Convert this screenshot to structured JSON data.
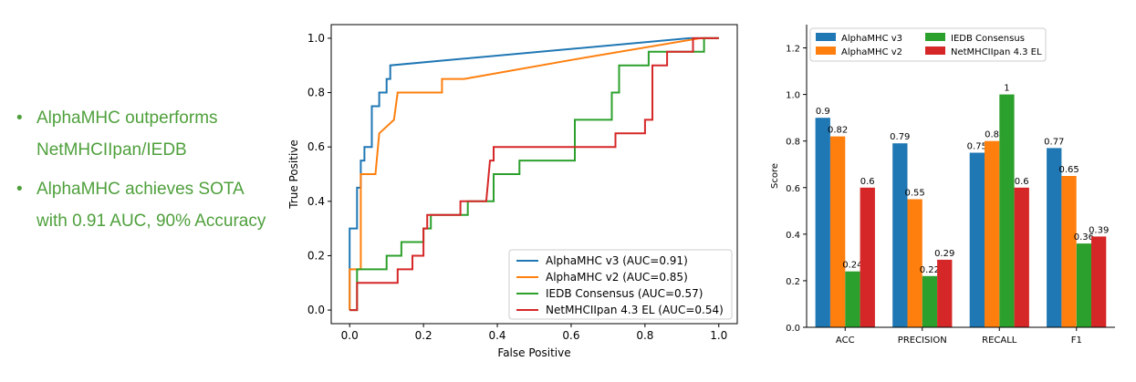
{
  "bullets": [
    {
      "lines": [
        "AlphaMHC outperforms",
        "NetMHCIIpan/IEDB"
      ]
    },
    {
      "lines": [
        "AlphaMHC achieves SOTA",
        "with 0.91 AUC, 90% Accuracy"
      ]
    }
  ],
  "chart_data": [
    {
      "type": "line",
      "xlabel": "False Positive",
      "ylabel": "True Positive",
      "xlim": [
        -0.05,
        1.05
      ],
      "ylim": [
        -0.05,
        1.05
      ],
      "xticks": [
        "0.0",
        "0.2",
        "0.4",
        "0.6",
        "0.8",
        "1.0"
      ],
      "yticks": [
        "0.0",
        "0.2",
        "0.4",
        "0.6",
        "0.8",
        "1.0"
      ],
      "legend_position": "bottom-right",
      "series": [
        {
          "name": "AlphaMHC v3 (AUC=0.91)",
          "color": "#1f77b4",
          "points": [
            [
              0,
              0
            ],
            [
              0,
              0.3
            ],
            [
              0.02,
              0.3
            ],
            [
              0.02,
              0.45
            ],
            [
              0.03,
              0.45
            ],
            [
              0.03,
              0.55
            ],
            [
              0.04,
              0.55
            ],
            [
              0.04,
              0.6
            ],
            [
              0.06,
              0.6
            ],
            [
              0.06,
              0.75
            ],
            [
              0.08,
              0.75
            ],
            [
              0.08,
              0.8
            ],
            [
              0.1,
              0.8
            ],
            [
              0.1,
              0.85
            ],
            [
              0.11,
              0.85
            ],
            [
              0.11,
              0.9
            ],
            [
              0.92,
              1.0
            ],
            [
              1,
              1
            ]
          ]
        },
        {
          "name": "AlphaMHC v2 (AUC=0.85)",
          "color": "#ff7f0e",
          "points": [
            [
              0,
              0
            ],
            [
              0,
              0.15
            ],
            [
              0.03,
              0.15
            ],
            [
              0.03,
              0.5
            ],
            [
              0.07,
              0.5
            ],
            [
              0.08,
              0.65
            ],
            [
              0.12,
              0.7
            ],
            [
              0.13,
              0.8
            ],
            [
              0.25,
              0.8
            ],
            [
              0.25,
              0.85
            ],
            [
              0.31,
              0.85
            ],
            [
              0.6,
              0.92
            ],
            [
              0.95,
              1.0
            ],
            [
              0.96,
              1.0
            ],
            [
              0.96,
              1.0
            ],
            [
              1,
              1
            ]
          ]
        },
        {
          "name": "IEDB Consensus (AUC=0.57)",
          "color": "#2ca02c",
          "points": [
            [
              0,
              0
            ],
            [
              0.02,
              0
            ],
            [
              0.02,
              0.15
            ],
            [
              0.1,
              0.15
            ],
            [
              0.1,
              0.2
            ],
            [
              0.14,
              0.2
            ],
            [
              0.14,
              0.25
            ],
            [
              0.2,
              0.25
            ],
            [
              0.2,
              0.3
            ],
            [
              0.22,
              0.3
            ],
            [
              0.22,
              0.35
            ],
            [
              0.32,
              0.35
            ],
            [
              0.32,
              0.4
            ],
            [
              0.39,
              0.4
            ],
            [
              0.39,
              0.5
            ],
            [
              0.46,
              0.5
            ],
            [
              0.46,
              0.55
            ],
            [
              0.53,
              0.55
            ],
            [
              0.61,
              0.55
            ],
            [
              0.61,
              0.7
            ],
            [
              0.71,
              0.7
            ],
            [
              0.71,
              0.8
            ],
            [
              0.73,
              0.8
            ],
            [
              0.73,
              0.9
            ],
            [
              0.81,
              0.9
            ],
            [
              0.81,
              0.95
            ],
            [
              0.96,
              0.95
            ],
            [
              0.96,
              1.0
            ],
            [
              1,
              1
            ]
          ]
        },
        {
          "name": "NetMHCIIpan 4.3 EL (AUC=0.54)",
          "color": "#d62728",
          "points": [
            [
              0,
              0
            ],
            [
              0.02,
              0
            ],
            [
              0.02,
              0.1
            ],
            [
              0.13,
              0.1
            ],
            [
              0.13,
              0.15
            ],
            [
              0.17,
              0.15
            ],
            [
              0.17,
              0.2
            ],
            [
              0.2,
              0.2
            ],
            [
              0.2,
              0.3
            ],
            [
              0.21,
              0.3
            ],
            [
              0.21,
              0.35
            ],
            [
              0.3,
              0.35
            ],
            [
              0.3,
              0.4
            ],
            [
              0.37,
              0.4
            ],
            [
              0.38,
              0.55
            ],
            [
              0.39,
              0.55
            ],
            [
              0.39,
              0.6
            ],
            [
              0.72,
              0.6
            ],
            [
              0.72,
              0.65
            ],
            [
              0.8,
              0.65
            ],
            [
              0.8,
              0.7
            ],
            [
              0.82,
              0.7
            ],
            [
              0.82,
              0.9
            ],
            [
              0.86,
              0.9
            ],
            [
              0.86,
              0.95
            ],
            [
              0.93,
              0.95
            ],
            [
              0.93,
              1.0
            ],
            [
              1,
              1
            ]
          ]
        }
      ]
    },
    {
      "type": "bar",
      "ylabel": "Score",
      "ylim": [
        0,
        1.3
      ],
      "yticks": [
        "0.0",
        "0.2",
        "0.4",
        "0.6",
        "0.8",
        "1.0",
        "1.2"
      ],
      "categories": [
        "ACC",
        "PRECISION",
        "RECALL",
        "F1"
      ],
      "legend_position": "top-left",
      "series": [
        {
          "name": "AlphaMHC v3",
          "color": "#1f77b4",
          "values": [
            0.9,
            0.79,
            0.75,
            0.77
          ],
          "labels": [
            "0.9",
            "0.79",
            "0.75",
            "0.77"
          ]
        },
        {
          "name": "AlphaMHC v2",
          "color": "#ff7f0e",
          "values": [
            0.82,
            0.55,
            0.8,
            0.65
          ],
          "labels": [
            "0.82",
            "0.55",
            "0.8",
            "0.65"
          ]
        },
        {
          "name": "IEDB Consensus",
          "color": "#2ca02c",
          "values": [
            0.24,
            0.22,
            1.0,
            0.36
          ],
          "labels": [
            "0.24",
            "0.22",
            "1",
            "0.36"
          ]
        },
        {
          "name": "NetMHCIIpan 4.3 EL",
          "color": "#d62728",
          "values": [
            0.6,
            0.29,
            0.6,
            0.39
          ],
          "labels": [
            "0.6",
            "0.29",
            "0.6",
            "0.39"
          ]
        }
      ]
    }
  ]
}
